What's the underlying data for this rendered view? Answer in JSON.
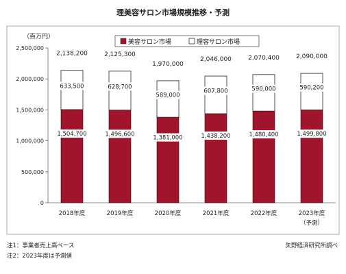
{
  "title": "理美容サロン市場規模推移・予測",
  "notes": {
    "note1": "注1：事業者売上高ベース",
    "note2": "注2：2023年度は予測値",
    "source": "矢野経済研究所調べ"
  },
  "chart_data": {
    "type": "bar",
    "stacked": true,
    "unit_label": "（百万円）",
    "categories": [
      "2018年度",
      "2019年度",
      "2020年度",
      "2021年度",
      "2022年度",
      "2023年度"
    ],
    "category_sublabels": [
      "",
      "",
      "",
      "",
      "",
      "（予測）"
    ],
    "series": [
      {
        "name": "美容サロン市場",
        "values": [
          1504700,
          1496600,
          1381000,
          1438200,
          1480400,
          1499800
        ],
        "color": "#a0142c"
      },
      {
        "name": "理容サロン市場",
        "values": [
          633500,
          628700,
          589000,
          607800,
          590000,
          590200
        ],
        "color": "#ffffff"
      }
    ],
    "totals": [
      2138200,
      2125300,
      1970000,
      2046000,
      2070400,
      2090000
    ],
    "ylim": [
      0,
      2500000
    ],
    "yticks": [
      0,
      500000,
      1000000,
      1500000,
      2000000,
      2500000
    ],
    "grid": false,
    "legend_position": "top-center"
  }
}
